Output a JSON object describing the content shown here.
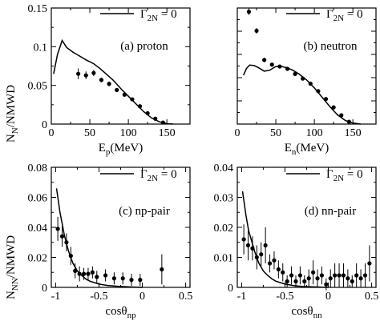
{
  "figure": {
    "y_label_top": "N",
    "y_label_top_sub": "N",
    "y_label_top_rest": "/NMWD",
    "y_label_bottom": "N",
    "y_label_bottom_sub": "NN",
    "y_label_bottom_rest": "/NMWD"
  },
  "chart_data": [
    {
      "id": "a",
      "type": "line",
      "panel_label": "(a) proton",
      "legend": "Γ",
      "legend_sub": "2N",
      "legend_rest": " = 0",
      "xlabel": "E",
      "xlabel_sub": "p",
      "xlabel_rest": "(MeV)",
      "xlim": [
        0,
        180
      ],
      "ylim": [
        0,
        0.15
      ],
      "xticks": [
        0,
        50,
        100,
        150
      ],
      "xtick_labels": [
        "0",
        "50",
        "100",
        "150"
      ],
      "yticks": [
        0,
        0.05,
        0.1,
        0.15
      ],
      "ytick_labels": [
        "0",
        "0.05",
        "0.1",
        "0.15"
      ],
      "series": [
        {
          "kind": "line",
          "x": [
            3,
            8,
            14,
            20,
            28,
            35,
            45,
            55,
            63,
            72,
            80,
            90,
            100,
            110,
            120,
            130,
            140,
            150,
            158
          ],
          "y": [
            0.065,
            0.09,
            0.108,
            0.099,
            0.093,
            0.089,
            0.083,
            0.078,
            0.072,
            0.064,
            0.057,
            0.046,
            0.036,
            0.026,
            0.016,
            0.008,
            0.003,
            0.0005,
            0.0
          ]
        },
        {
          "kind": "points",
          "x": [
            35,
            45,
            55,
            65,
            75,
            85,
            95,
            105,
            115,
            125,
            135,
            145
          ],
          "y": [
            0.065,
            0.063,
            0.066,
            0.057,
            0.052,
            0.044,
            0.038,
            0.032,
            0.023,
            0.014,
            0.007,
            0.002
          ],
          "err": [
            0.007,
            0.005,
            0.004,
            0.003,
            0.003,
            0.002,
            0.002,
            0.002,
            0.002,
            0.0015,
            0.001,
            0.001
          ]
        }
      ]
    },
    {
      "id": "b",
      "type": "line",
      "panel_label": "(b) neutron",
      "legend": "Γ",
      "legend_sub": "2N",
      "legend_rest": " = 0",
      "xlabel": "E",
      "xlabel_sub": "n",
      "xlabel_rest": "(MeV)",
      "xlim": [
        0,
        180
      ],
      "ylim": [
        0,
        0.25
      ],
      "xticks": [
        0,
        50,
        100,
        150
      ],
      "xtick_labels": [
        "0",
        "50",
        "100",
        "150"
      ],
      "yticks": [
        0,
        0.05,
        0.1,
        0.15,
        0.2,
        0.25
      ],
      "ytick_labels": [],
      "series": [
        {
          "kind": "line",
          "x": [
            8,
            12,
            16,
            22,
            28,
            35,
            42,
            50,
            58,
            65,
            72,
            80,
            90,
            100,
            110,
            120,
            130,
            140,
            150,
            160
          ],
          "y": [
            0.105,
            0.12,
            0.127,
            0.126,
            0.121,
            0.114,
            0.116,
            0.124,
            0.124,
            0.121,
            0.116,
            0.108,
            0.095,
            0.078,
            0.058,
            0.038,
            0.02,
            0.008,
            0.002,
            0.0
          ]
        },
        {
          "kind": "points",
          "x": [
            15,
            25,
            35,
            45,
            55,
            65,
            75,
            85,
            95,
            105,
            115,
            125,
            135,
            145
          ],
          "y": [
            0.242,
            0.201,
            0.138,
            0.128,
            0.124,
            0.119,
            0.108,
            0.098,
            0.087,
            0.071,
            0.054,
            0.036,
            0.019,
            0.005
          ],
          "err": [
            0.007,
            0.006,
            0.005,
            0.004,
            0.004,
            0.004,
            0.003,
            0.003,
            0.003,
            0.003,
            0.002,
            0.002,
            0.002,
            0.001
          ]
        }
      ]
    },
    {
      "id": "c",
      "type": "line",
      "panel_label": "(c) np-pair",
      "legend": "Γ",
      "legend_sub": "2N",
      "legend_rest": " = 0",
      "xlabel": "cosθ",
      "xlabel_sub": "np",
      "xlabel_rest": "",
      "xlim": [
        -1.05,
        0.55
      ],
      "ylim": [
        0,
        0.08
      ],
      "xticks": [
        -1,
        -0.5,
        0,
        0.5
      ],
      "xtick_labels": [
        "-1",
        "-0.5",
        "0",
        "0.5"
      ],
      "yticks": [
        0,
        0.02,
        0.04,
        0.06,
        0.08
      ],
      "ytick_labels": [
        "0",
        "0.02",
        "0.04",
        "0.06",
        "0.08"
      ],
      "series": [
        {
          "kind": "line",
          "x": [
            -0.99,
            -0.97,
            -0.95,
            -0.92,
            -0.9,
            -0.87,
            -0.85,
            -0.82,
            -0.8,
            -0.77,
            -0.75,
            -0.7,
            -0.65,
            -0.6,
            -0.5,
            -0.4,
            -0.3,
            -0.2,
            -0.1,
            0.0
          ],
          "y": [
            0.066,
            0.058,
            0.05,
            0.041,
            0.035,
            0.028,
            0.024,
            0.019,
            0.016,
            0.013,
            0.011,
            0.008,
            0.0055,
            0.004,
            0.0022,
            0.0013,
            0.0008,
            0.0005,
            0.0002,
            0.0
          ]
        },
        {
          "kind": "points",
          "x": [
            -0.975,
            -0.925,
            -0.875,
            -0.825,
            -0.775,
            -0.725,
            -0.675,
            -0.625,
            -0.575,
            -0.525,
            -0.425,
            -0.325,
            -0.225,
            -0.125,
            -0.025,
            0.225
          ],
          "y": [
            0.039,
            0.034,
            0.03,
            0.021,
            0.011,
            0.009,
            0.009,
            0.009,
            0.01,
            0.007,
            0.008,
            0.006,
            0.006,
            0.005,
            0.005,
            0.012
          ],
          "err": [
            0.008,
            0.007,
            0.006,
            0.006,
            0.005,
            0.005,
            0.004,
            0.004,
            0.004,
            0.004,
            0.004,
            0.004,
            0.004,
            0.004,
            0.004,
            0.01
          ]
        }
      ]
    },
    {
      "id": "d",
      "type": "line",
      "panel_label": "(d) nn-pair",
      "legend": "Γ",
      "legend_sub": "2N",
      "legend_rest": " = 0",
      "xlabel": "cosθ",
      "xlabel_sub": "nn",
      "xlabel_rest": "",
      "xlim": [
        -1.05,
        0.55
      ],
      "ylim": [
        0,
        0.04
      ],
      "xticks": [
        -1,
        -0.5,
        0,
        0.5
      ],
      "xtick_labels": [
        "-1",
        "-0.5",
        "0",
        "0.5"
      ],
      "yticks": [
        0,
        0.01,
        0.02,
        0.03,
        0.04
      ],
      "ytick_labels": [
        "0",
        "0.01",
        "0.02",
        "0.03",
        "0.04"
      ],
      "series": [
        {
          "kind": "line",
          "x": [
            -0.99,
            -0.97,
            -0.95,
            -0.92,
            -0.9,
            -0.87,
            -0.85,
            -0.82,
            -0.8,
            -0.77,
            -0.75,
            -0.7,
            -0.65,
            -0.6,
            -0.5,
            -0.4,
            -0.3,
            -0.2,
            -0.1,
            0.0
          ],
          "y": [
            0.032,
            0.028,
            0.024,
            0.019,
            0.017,
            0.014,
            0.012,
            0.0095,
            0.008,
            0.0065,
            0.0055,
            0.004,
            0.0028,
            0.002,
            0.0011,
            0.0006,
            0.0003,
            0.0002,
            0.0001,
            0.0
          ]
        },
        {
          "kind": "points",
          "x": [
            -0.975,
            -0.925,
            -0.875,
            -0.825,
            -0.775,
            -0.725,
            -0.675,
            -0.625,
            -0.575,
            -0.525,
            -0.475,
            -0.425,
            -0.375,
            -0.325,
            -0.275,
            -0.225,
            -0.175,
            -0.125,
            -0.075,
            -0.025,
            0.025,
            0.075,
            0.125,
            0.175,
            0.225,
            0.275,
            0.325,
            0.375,
            0.425,
            0.475
          ],
          "y": [
            0.016,
            0.014,
            0.013,
            0.01,
            0.011,
            0.014,
            0.008,
            0.009,
            0.006,
            0.005,
            0.002,
            0.004,
            0.002,
            0.004,
            0.002,
            0.003,
            0.005,
            0.003,
            0.004,
            0.001,
            0.003,
            0.004,
            0.004,
            0.004,
            0.003,
            0.002,
            0.004,
            0.003,
            0.004,
            0.008
          ],
          "err": [
            0.005,
            0.005,
            0.004,
            0.004,
            0.004,
            0.006,
            0.003,
            0.003,
            0.003,
            0.003,
            0.002,
            0.003,
            0.002,
            0.003,
            0.002,
            0.003,
            0.004,
            0.003,
            0.003,
            0.002,
            0.003,
            0.004,
            0.004,
            0.004,
            0.003,
            0.002,
            0.004,
            0.003,
            0.004,
            0.006
          ]
        }
      ]
    }
  ]
}
